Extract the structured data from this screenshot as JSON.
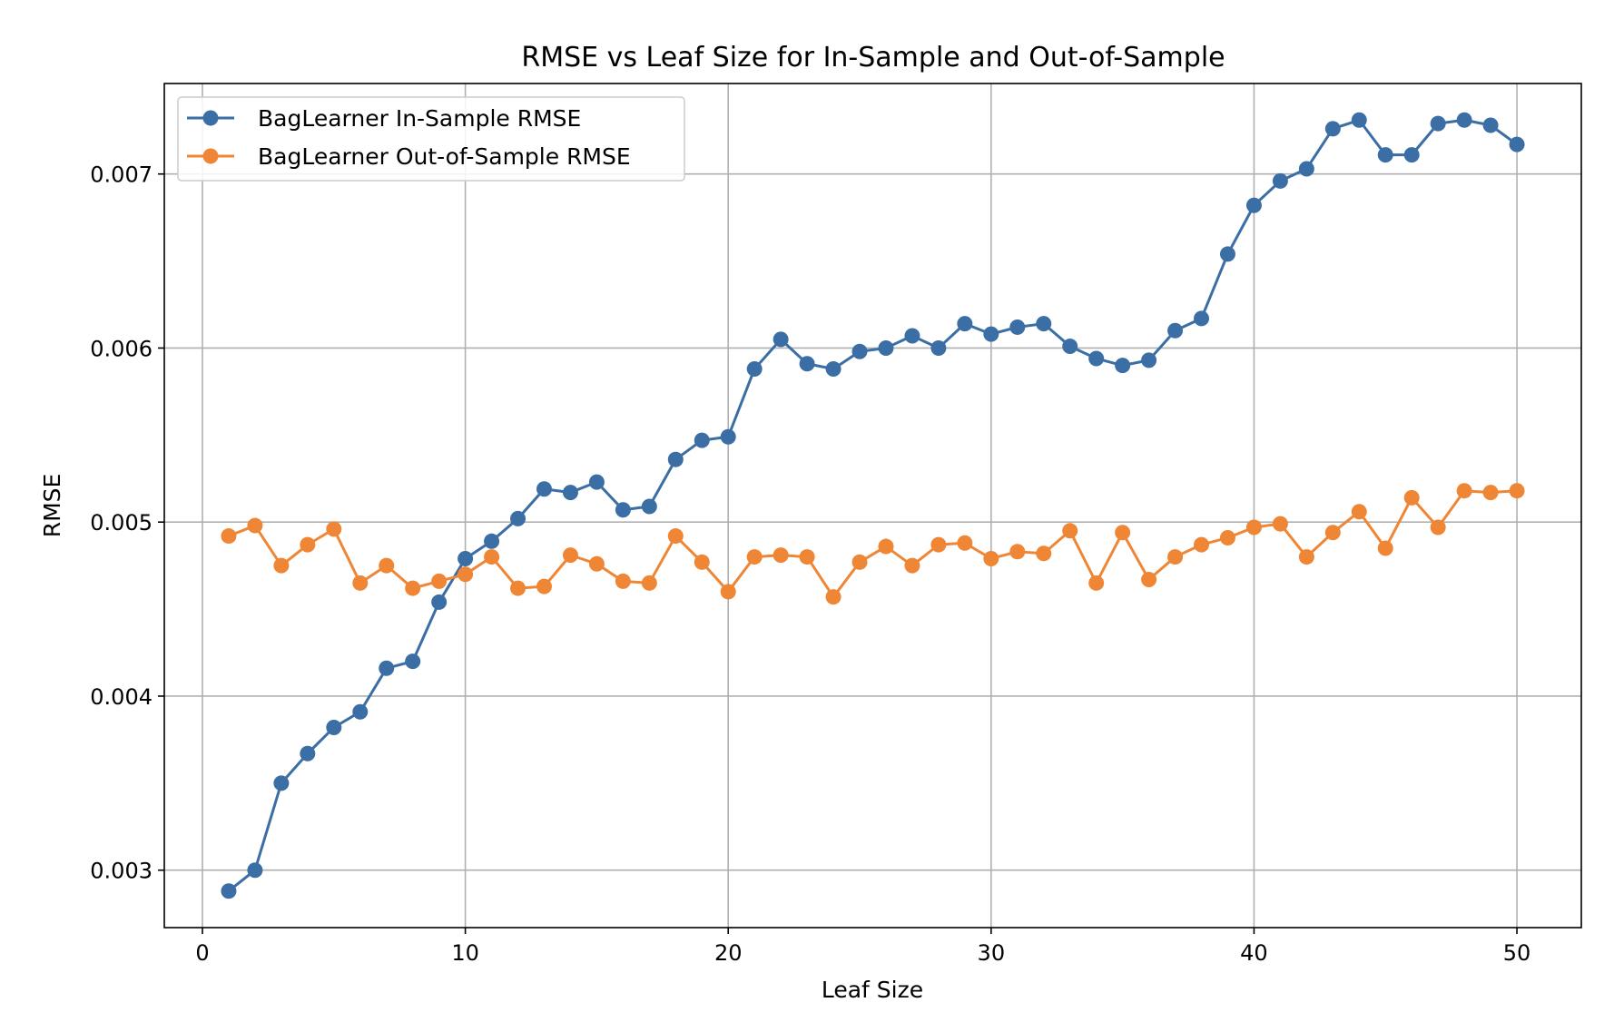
{
  "chart_data": {
    "type": "line",
    "title": "RMSE vs Leaf Size for In-Sample and Out-of-Sample",
    "xlabel": "Leaf Size",
    "ylabel": "RMSE",
    "xlim": [
      -1.45,
      52.45
    ],
    "ylim": [
      0.00267,
      0.00752
    ],
    "xticks": [
      0,
      10,
      20,
      30,
      40,
      50
    ],
    "xtick_labels": [
      "0",
      "10",
      "20",
      "30",
      "40",
      "50"
    ],
    "yticks": [
      0.003,
      0.004,
      0.005,
      0.006,
      0.007
    ],
    "ytick_labels": [
      "0.003",
      "0.004",
      "0.005",
      "0.006",
      "0.007"
    ],
    "grid": true,
    "legend_position": "top-left",
    "x": [
      1,
      2,
      3,
      4,
      5,
      6,
      7,
      8,
      9,
      10,
      11,
      12,
      13,
      14,
      15,
      16,
      17,
      18,
      19,
      20,
      21,
      22,
      23,
      24,
      25,
      26,
      27,
      28,
      29,
      30,
      31,
      32,
      33,
      34,
      35,
      36,
      37,
      38,
      39,
      40,
      41,
      42,
      43,
      44,
      45,
      46,
      47,
      48,
      49,
      50
    ],
    "series": [
      {
        "name": "BagLearner In-Sample RMSE",
        "color": "#3a6ea5",
        "values": [
          0.00288,
          0.003,
          0.0035,
          0.00367,
          0.00382,
          0.00391,
          0.00416,
          0.0042,
          0.00454,
          0.00479,
          0.00489,
          0.00502,
          0.00519,
          0.00517,
          0.00523,
          0.00507,
          0.00509,
          0.00536,
          0.00547,
          0.00549,
          0.00588,
          0.00605,
          0.00591,
          0.00588,
          0.00598,
          0.006,
          0.00607,
          0.006,
          0.00614,
          0.00608,
          0.00612,
          0.00614,
          0.00601,
          0.00594,
          0.0059,
          0.00593,
          0.0061,
          0.00617,
          0.00654,
          0.00682,
          0.00696,
          0.00703,
          0.00726,
          0.00731,
          0.00711,
          0.00711,
          0.00729,
          0.00731,
          0.00728,
          0.00717
        ]
      },
      {
        "name": "BagLearner Out-of-Sample RMSE",
        "color": "#ef8636",
        "values": [
          0.00492,
          0.00498,
          0.00475,
          0.00487,
          0.00496,
          0.00465,
          0.00475,
          0.00462,
          0.00466,
          0.0047,
          0.0048,
          0.00462,
          0.00463,
          0.00481,
          0.00476,
          0.00466,
          0.00465,
          0.00492,
          0.00477,
          0.0046,
          0.0048,
          0.00481,
          0.0048,
          0.00457,
          0.00477,
          0.00486,
          0.00475,
          0.00487,
          0.00488,
          0.00479,
          0.00483,
          0.00482,
          0.00495,
          0.00465,
          0.00494,
          0.00467,
          0.0048,
          0.00487,
          0.00491,
          0.00497,
          0.00499,
          0.0048,
          0.00494,
          0.00506,
          0.00485,
          0.00514,
          0.00497,
          0.00518,
          0.00517,
          0.00518
        ]
      }
    ]
  }
}
